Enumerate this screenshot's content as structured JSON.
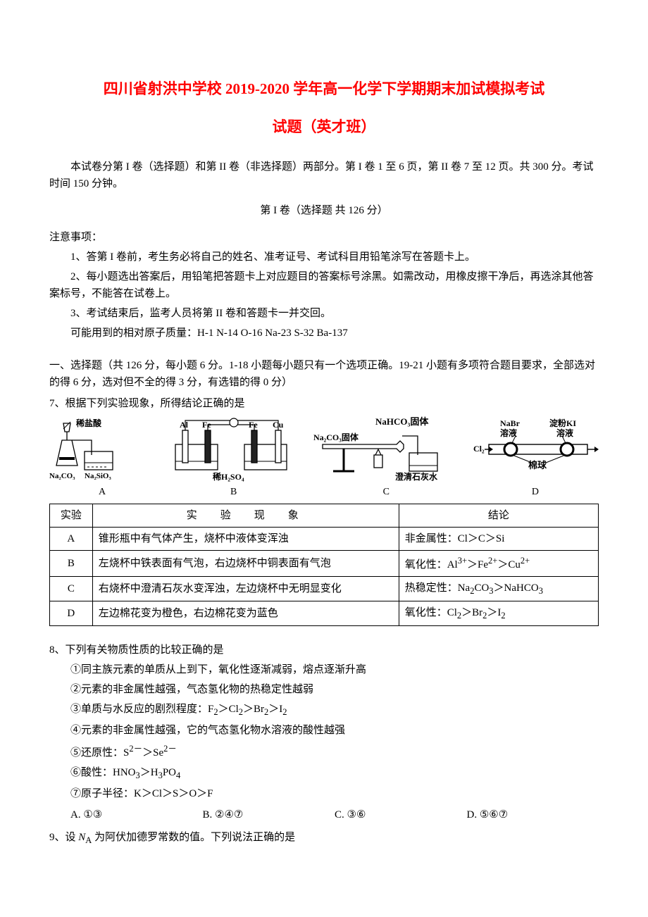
{
  "title_line1": "四川省射洪中学校 2019-2020 学年高一化学下学期期末加试模拟考试",
  "title_line2": "试题（英才班）",
  "intro_p1": "本试卷分第 I 卷（选择题）和第 II 卷（非选择题）两部分。第 I 卷 1 至 6 页，第 II 卷 7 至 12 页。共 300 分。考试时间 150 分钟。",
  "part1_title": "第 I 卷（选择题  共 126 分）",
  "notice_label": "注意事项：",
  "notice_1": "1、答第 I 卷前，考生务必将自己的姓名、准考证号、考试科目用铅笔涂写在答题卡上。",
  "notice_2": "2、每小题选出答案后，用铅笔把答题卡上对应题目的答案标号涂黑。如需改动，用橡皮擦干净后，再选涂其他答案标号，不能答在试卷上。",
  "notice_3": "3、考试结束后，监考人员将第 II 卷和答题卡一并交回。",
  "atomic_mass": "可能用到的相对原子质量：H-1  N-14  O-16  Na-23  S-32  Ba-137",
  "section1_intro_a": "一、选择题（共 126 分，每小题 6 分。1-18 小题每小题只有一个选项正确。19-21 小题有多项符合题目要求，全部选对的得 6 分，选对但不全的得 3 分，有选错的得 0 分）",
  "q7_stem": "7、根据下列实验现象，所得结论正确的是",
  "diagrams": {
    "A": {
      "label": "A"
    },
    "B": {
      "label": "B"
    },
    "C": {
      "label": "C"
    },
    "D": {
      "label": "D"
    }
  },
  "table": {
    "header": {
      "c1": "实验",
      "c2": "实　验　现　象",
      "c3": "结论"
    },
    "rows": [
      {
        "id": "A",
        "phenom": "锥形瓶中有气体产生，烧杯中液体变浑浊",
        "concl": "非金属性：Cl＞C＞Si"
      },
      {
        "id": "B",
        "phenom": "左烧杯中铁表面有气泡，右边烧杯中铜表面有气泡",
        "concl_html": "氧化性：Al<sup>3+</sup>＞Fe<sup>2+</sup>＞Cu<sup>2+</sup>"
      },
      {
        "id": "C",
        "phenom": "右烧杯中澄清石灰水变浑浊，左边烧杯中无明显变化",
        "concl_html": "热稳定性：Na<sub>2</sub>CO<sub>3</sub>＞NaHCO<sub>3</sub>"
      },
      {
        "id": "D",
        "phenom": "左边棉花变为橙色，右边棉花变为蓝色",
        "concl_html": "氧化性：Cl<sub>2</sub>＞Br<sub>2</sub>＞I<sub>2</sub>"
      }
    ]
  },
  "q8_stem": "8、下列有关物质性质的比较正确的是",
  "q8_items": {
    "i1": "①同主族元素的单质从上到下，氧化性逐渐减弱，熔点逐渐升高",
    "i2": "②元素的非金属性越强，气态氢化物的热稳定性越弱",
    "i3_html": "③单质与水反应的剧烈程度：F<sub>2</sub>＞Cl<sub>2</sub>＞Br<sub>2</sub>＞I<sub>2</sub>",
    "i4": "④元素的非金属性越强，它的气态氢化物水溶液的酸性越强",
    "i5_html": "⑤还原性：S<sup>2－</sup>＞Se<sup>2－</sup>",
    "i6_html": "⑥酸性：HNO<sub>3</sub>＞H<sub>3</sub>PO<sub>4</sub>",
    "i7": "⑦原子半径：K＞Cl＞S＞O＞F"
  },
  "q8_options": {
    "A": "A. ①③",
    "B": "B. ②④⑦",
    "C": "C. ③⑥",
    "D": "D. ⑤⑥⑦"
  },
  "q9_stem_html": "9、设 <span class=\"italic\">N</span><sub>A</sub> 为阿伏加德罗常数的值。下列说法正确的是"
}
